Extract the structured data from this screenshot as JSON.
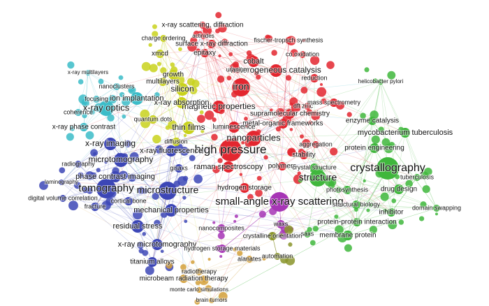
{
  "clusters": [
    {
      "color": "#e3262f",
      "nodes": [
        "x-ray scattering, diffraction",
        "actinides",
        "surface x-ray diffraction",
        "fischer-tropsch synthesis",
        "co oxidation",
        "cobalt",
        "heterogeneous catalysis",
        "reduction",
        "iron",
        "uranium",
        "epitaxy",
        "magnetic properties",
        "dft",
        "zinc",
        "mass spectrometry",
        "supramolecular chemistry",
        "metal-organic frameworks",
        "luminescence",
        "nanoparticles",
        "high pressure",
        "aggregation",
        "stability",
        "raman spectroscopy",
        "polymers",
        "hydrogen storage"
      ]
    },
    {
      "color": "#c9d21c",
      "nodes": [
        "charge ordering",
        "xmcd",
        "growth",
        "multilayers",
        "silicon",
        "x-ray absorption",
        "quantum dots",
        "thin films",
        "diffusion"
      ]
    },
    {
      "color": "#3bbcc8",
      "nodes": [
        "x-ray multilayers",
        "nanoclusters",
        "focusing",
        "ion implantation",
        "x-ray optics",
        "coherence",
        "x-ray phase contrast"
      ]
    },
    {
      "color": "#3c46b6",
      "nodes": [
        "x-ray imaging",
        "microtomography",
        "x-ray fluorescence",
        "radiography",
        "gisaxs",
        "phase contrast imaging",
        "laminography",
        "tomography",
        "microstructure",
        "digital volume correlation",
        "cortical bone",
        "fracture",
        "mechanical properties",
        "residual stress",
        "x-ray microtomography",
        "titanium alloys"
      ]
    },
    {
      "color": "#a635b5",
      "nodes": [
        "small-angle x-ray scattering",
        "nanocomposites",
        "waxs",
        "hydrogen storage materials"
      ]
    },
    {
      "color": "#3fb73c",
      "nodes": [
        "helicobacter pylori",
        "enzyme catalysis",
        "mycobacterium tuberculosis",
        "protein engineering",
        "crystal structure",
        "crystallography",
        "structure",
        "tuberculosis",
        "photosynthesis",
        "drug design",
        "structural biology",
        "domain swapping",
        "inhibitor",
        "protein-protein interaction",
        "saxs",
        "membrane protein"
      ]
    },
    {
      "color": "#8a942a",
      "nodes": [
        "crystalline orientation",
        "automation"
      ]
    },
    {
      "color": "#d4a03a",
      "nodes": [
        "alanates",
        "radiotherapy",
        "microbeam radiation therapy",
        "monte carlo simulations",
        "brain tumors"
      ]
    }
  ]
}
